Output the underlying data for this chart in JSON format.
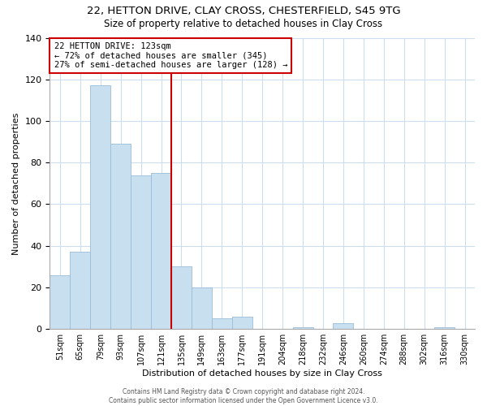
{
  "title": "22, HETTON DRIVE, CLAY CROSS, CHESTERFIELD, S45 9TG",
  "subtitle": "Size of property relative to detached houses in Clay Cross",
  "xlabel": "Distribution of detached houses by size in Clay Cross",
  "ylabel": "Number of detached properties",
  "bar_color": "#c8dff0",
  "bar_edge_color": "#9bbdd8",
  "bin_labels": [
    "51sqm",
    "65sqm",
    "79sqm",
    "93sqm",
    "107sqm",
    "121sqm",
    "135sqm",
    "149sqm",
    "163sqm",
    "177sqm",
    "191sqm",
    "204sqm",
    "218sqm",
    "232sqm",
    "246sqm",
    "260sqm",
    "274sqm",
    "288sqm",
    "302sqm",
    "316sqm",
    "330sqm"
  ],
  "bar_heights": [
    26,
    37,
    117,
    89,
    74,
    75,
    30,
    20,
    5,
    6,
    0,
    0,
    1,
    0,
    3,
    0,
    0,
    0,
    0,
    1,
    0
  ],
  "vline_color": "#cc0000",
  "ylim": [
    0,
    140
  ],
  "yticks": [
    0,
    20,
    40,
    60,
    80,
    100,
    120,
    140
  ],
  "annotation_title": "22 HETTON DRIVE: 123sqm",
  "annotation_line1": "← 72% of detached houses are smaller (345)",
  "annotation_line2": "27% of semi-detached houses are larger (128) →",
  "annotation_box_color": "#ffffff",
  "annotation_box_edge": "#cc0000",
  "footer_line1": "Contains HM Land Registry data © Crown copyright and database right 2024.",
  "footer_line2": "Contains public sector information licensed under the Open Government Licence v3.0.",
  "background_color": "#ffffff",
  "grid_color": "#ccddee"
}
